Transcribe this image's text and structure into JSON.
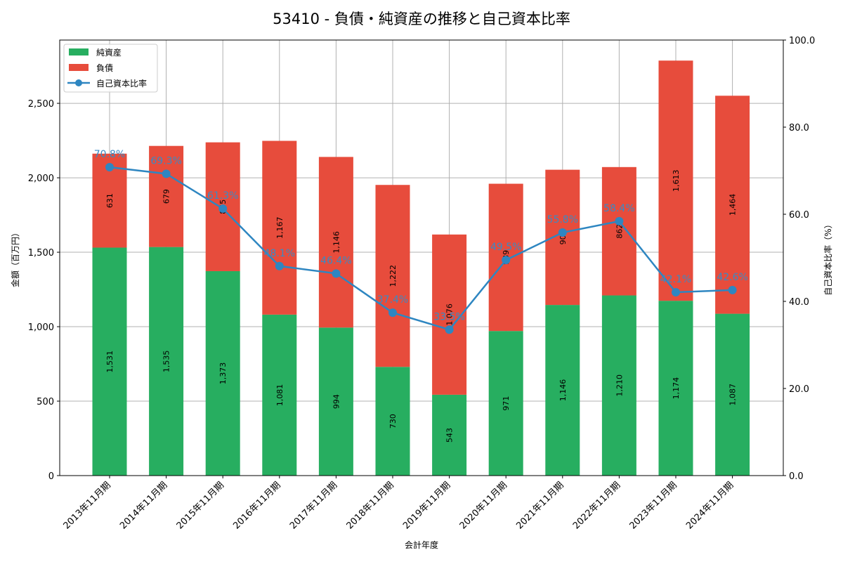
{
  "chart_data": {
    "type": "bar",
    "title": "53410 - 負債・純資産の推移と自己資本比率",
    "xlabel": "会計年度",
    "ylabel": "金額（百万円）",
    "y2label": "自己資本比率（%）",
    "ylim": [
      0,
      2925
    ],
    "y2lim": [
      0,
      100
    ],
    "yticks": [
      0,
      500,
      1000,
      1500,
      2000,
      2500
    ],
    "ytick_labels": [
      "0",
      "500",
      "1,000",
      "1,500",
      "2,000",
      "2,500"
    ],
    "y2ticks": [
      0,
      20,
      40,
      60,
      80,
      100
    ],
    "y2tick_labels": [
      "0.0",
      "20.0",
      "40.0",
      "60.0",
      "80.0",
      "100.0"
    ],
    "grid": true,
    "legend_position": "upper left",
    "categories": [
      "2013年11月期",
      "2014年11月期",
      "2015年11月期",
      "2016年11月期",
      "2017年11月期",
      "2018年11月期",
      "2019年11月期",
      "2020年11月期",
      "2021年11月期",
      "2022年11月期",
      "2023年11月期",
      "2024年11月期"
    ],
    "series": [
      {
        "name": "純資産",
        "type": "bar",
        "stack": "total",
        "color": "#27ae60",
        "values": [
          1531,
          1535,
          1373,
          1081,
          994,
          730,
          543,
          971,
          1146,
          1210,
          1174,
          1087
        ],
        "labels": [
          "1,531",
          "1,535",
          "1,373",
          "1,081",
          "994",
          "730",
          "543",
          "971",
          "1,146",
          "1,210",
          "1,174",
          "1,087"
        ]
      },
      {
        "name": "負債",
        "type": "bar",
        "stack": "total",
        "color": "#e74c3c",
        "values": [
          631,
          679,
          865,
          1167,
          1146,
          1222,
          1076,
          989,
          908,
          862,
          1613,
          1464
        ],
        "labels": [
          "631",
          "679",
          "865",
          "1,167",
          "1,146",
          "1,222",
          "1,076",
          "989",
          "908",
          "862",
          "1,613",
          "1,464"
        ]
      },
      {
        "name": "自己資本比率",
        "type": "line",
        "axis": "right",
        "color": "#2e86c1",
        "values": [
          70.8,
          69.3,
          61.3,
          48.1,
          46.4,
          37.4,
          33.5,
          49.5,
          55.8,
          58.4,
          42.1,
          42.6
        ],
        "labels": [
          "70.8%",
          "69.3%",
          "61.3%",
          "48.1%",
          "46.4%",
          "37.4%",
          "33.5%",
          "49.5%",
          "55.8%",
          "58.4%",
          "42.1%",
          "42.6%"
        ]
      }
    ]
  }
}
